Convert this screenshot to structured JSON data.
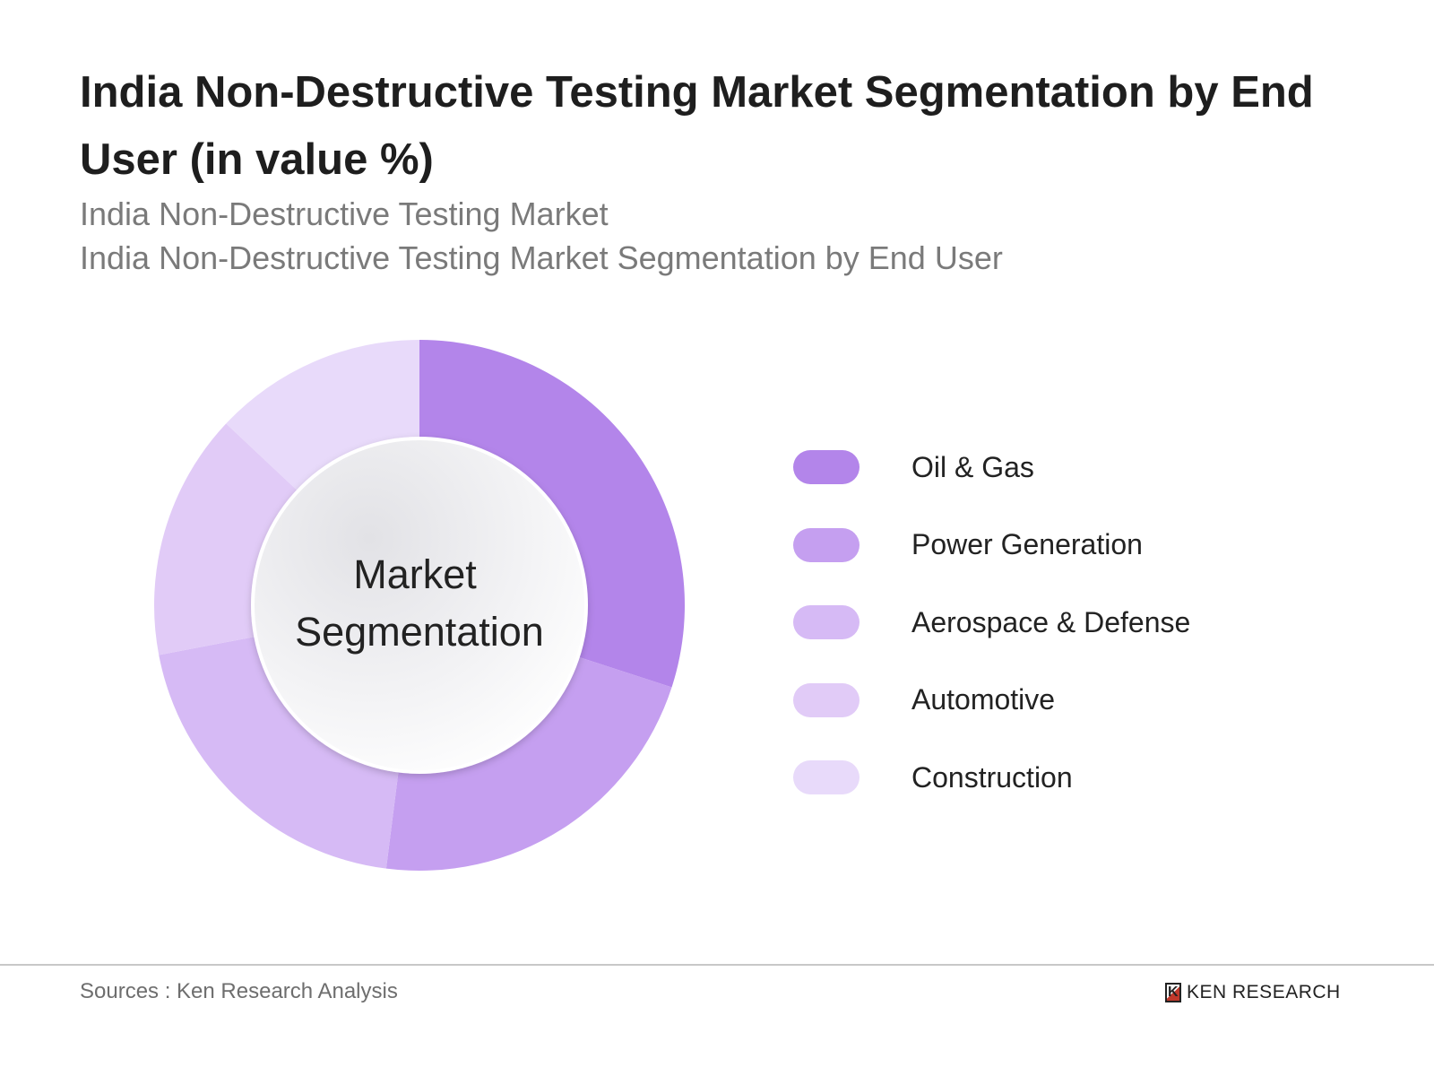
{
  "chart_data": {
    "type": "pie",
    "variant": "donut",
    "title": "India Non-Destructive Testing Market Segmentation by End User (in value %)",
    "subtitles": [
      "India Non-Destructive Testing Market",
      "India Non-Destructive Testing Market Segmentation by End User"
    ],
    "center_label": [
      "Market",
      "Segmentation"
    ],
    "categories": [
      "Oil & Gas",
      "Power Generation",
      "Aerospace & Defense",
      "Automotive",
      "Construction"
    ],
    "values": [
      30,
      22,
      20,
      15,
      13
    ],
    "colors": [
      "#b385ea",
      "#c59ff0",
      "#d6baf5",
      "#e1cbf7",
      "#e8dafa"
    ],
    "legend_position": "right"
  },
  "footer": {
    "source": "Sources : Ken Research Analysis",
    "logo_text": "KEN RESEARCH",
    "logo_mark": "K"
  }
}
